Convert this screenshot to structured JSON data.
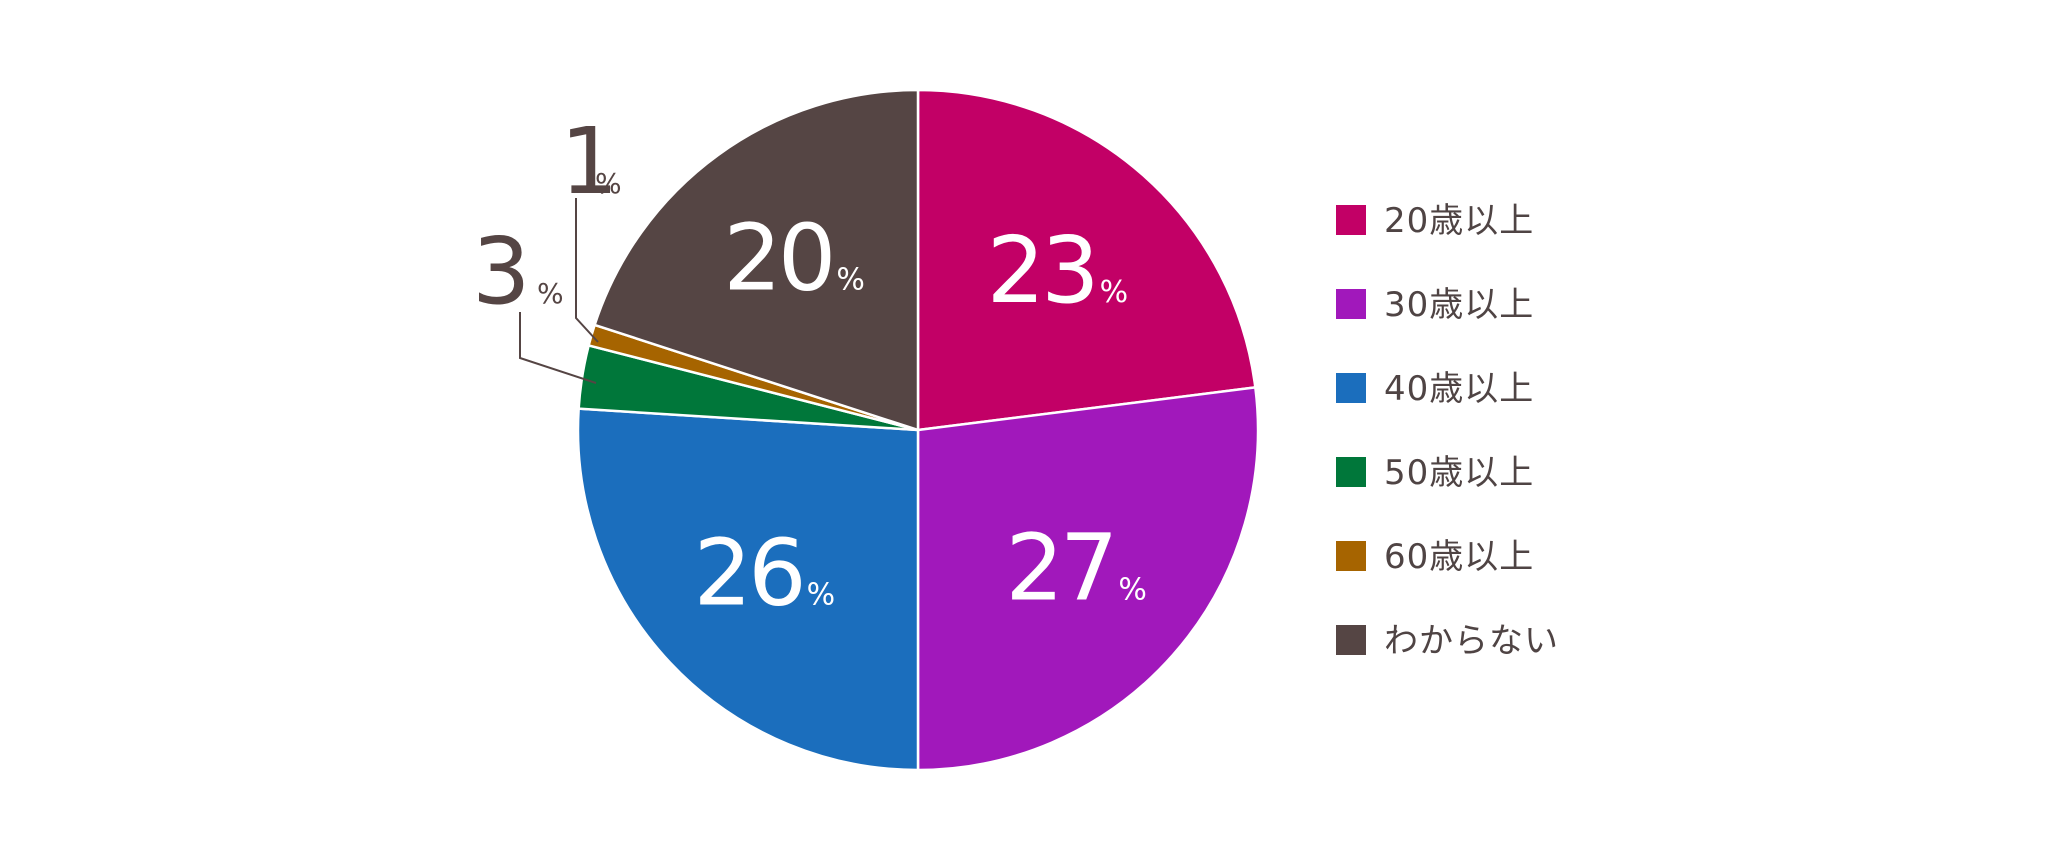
{
  "chart_data": {
    "type": "pie",
    "categories": [
      "20歳以上",
      "30歳以上",
      "40歳以上",
      "50歳以上",
      "60歳以上",
      "わからない"
    ],
    "values": [
      23,
      27,
      26,
      3,
      1,
      20
    ],
    "colors": [
      "#c20066",
      "#a118bb",
      "#1b6ebd",
      "#00773a",
      "#a66400",
      "#554544"
    ],
    "value_labels": [
      "23",
      "27",
      "26",
      "3",
      "1",
      "20"
    ],
    "unit": "%",
    "legend": {
      "position": "right",
      "items": [
        {
          "label": "20歳以上",
          "color": "#c20066"
        },
        {
          "label": "30歳以上",
          "color": "#a118bb"
        },
        {
          "label": "40歳以上",
          "color": "#1b6ebd"
        },
        {
          "label": "50歳以上",
          "color": "#00773a"
        },
        {
          "label": "60歳以上",
          "color": "#a66400"
        },
        {
          "label": "わからない",
          "color": "#554544"
        }
      ]
    },
    "label_color_inside": "#ffffff",
    "label_color_outside": "#554544",
    "start_angle": "12 o'clock",
    "direction": "clockwise"
  }
}
